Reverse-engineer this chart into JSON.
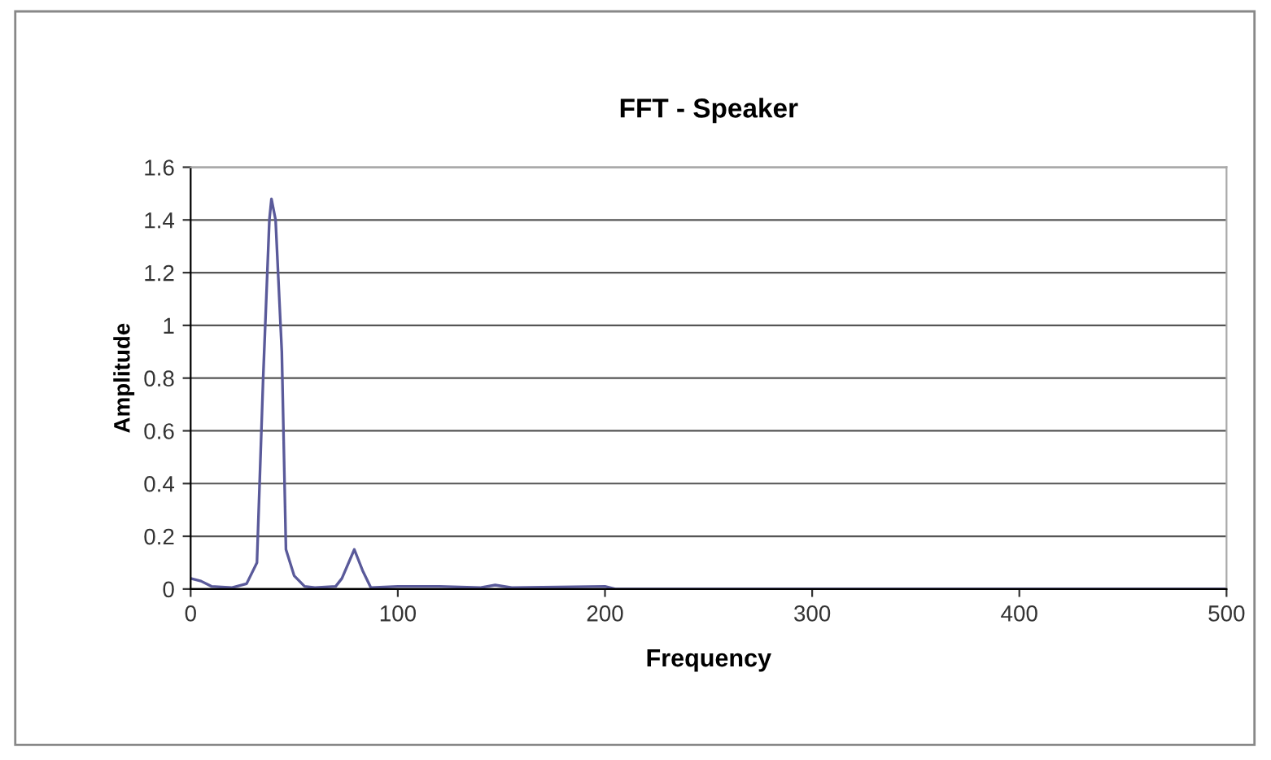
{
  "chart_data": {
    "type": "line",
    "title": "FFT - Speaker",
    "xlabel": "Frequency",
    "ylabel": "Amplitude",
    "x": [
      0,
      5,
      10,
      20,
      27,
      32,
      35,
      38,
      39,
      41,
      44,
      46,
      50,
      55,
      60,
      70,
      73,
      79,
      83,
      87,
      100,
      120,
      140,
      147,
      155,
      200,
      205,
      300,
      400,
      500
    ],
    "series": [
      {
        "color": "#5a5a9a",
        "values": [
          0.04,
          0.03,
          0.01,
          0.005,
          0.02,
          0.1,
          0.8,
          1.4,
          1.48,
          1.4,
          0.9,
          0.15,
          0.05,
          0.01,
          0.005,
          0.01,
          0.04,
          0.15,
          0.07,
          0.005,
          0.01,
          0.01,
          0.005,
          0.015,
          0.005,
          0.01,
          0,
          0,
          0,
          0
        ]
      }
    ],
    "xlim": [
      0,
      500
    ],
    "xticks": [
      0,
      100,
      200,
      300,
      400,
      500
    ],
    "ylim": [
      0,
      1.6
    ],
    "yticks": [
      0,
      0.2,
      0.4,
      0.6,
      0.8,
      1,
      1.2,
      1.4,
      1.6
    ],
    "grid": "y",
    "legend": false,
    "marker": "none",
    "line_style": "solid"
  }
}
